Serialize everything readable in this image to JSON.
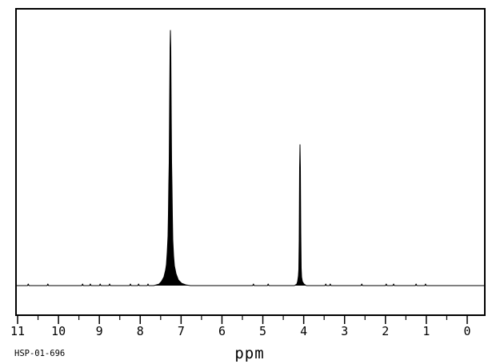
{
  "meta": {
    "spectrum_id": "HSP-01-696"
  },
  "colors": {
    "line": "#000000",
    "background": "#ffffff"
  },
  "chart_data": {
    "type": "line",
    "title": "",
    "xlabel": "ppm",
    "ylabel": "",
    "legend": "none",
    "grid": false,
    "x_axis": {
      "min": 0,
      "max": 11,
      "inverted": true,
      "unit": "ppm",
      "major_ticks": [
        11,
        10,
        9,
        8,
        7,
        6,
        5,
        4,
        3,
        2,
        1,
        0
      ],
      "major_tick_labels": [
        "11",
        "10",
        "9",
        "8",
        "7",
        "6",
        "5",
        "4",
        "3",
        "2",
        "1",
        "0"
      ],
      "minor_tick_positions": [
        10.5,
        9.5,
        8.5,
        7.5,
        6.5,
        5.5,
        4.5,
        3.5,
        2.5,
        1.5,
        0.5
      ]
    },
    "y_axis": {
      "visible": false,
      "relative_intensity_range": [
        0,
        1
      ]
    },
    "peaks": [
      {
        "ppm": 7.26,
        "relative_intensity": 1.0,
        "shape": "multiplet"
      },
      {
        "ppm": 4.09,
        "relative_intensity": 0.55,
        "shape": "singlet"
      }
    ],
    "trace_clusters": [
      {
        "name": "peak-7.26",
        "points": [
          [
            7.67,
            0.0
          ],
          [
            7.54,
            0.006
          ],
          [
            7.48,
            0.016
          ],
          [
            7.42,
            0.034
          ],
          [
            7.38,
            0.06
          ],
          [
            7.36,
            0.082
          ],
          [
            7.34,
            0.129
          ],
          [
            7.32,
            0.194
          ],
          [
            7.31,
            0.279
          ],
          [
            7.3,
            0.398
          ],
          [
            7.29,
            0.483
          ],
          [
            7.28,
            0.743
          ],
          [
            7.27,
            0.931
          ],
          [
            7.261,
            1.0
          ],
          [
            7.251,
            0.931
          ],
          [
            7.241,
            0.649
          ],
          [
            7.232,
            0.483
          ],
          [
            7.222,
            0.389
          ],
          [
            7.212,
            0.273
          ],
          [
            7.202,
            0.179
          ],
          [
            7.183,
            0.116
          ],
          [
            7.163,
            0.078
          ],
          [
            7.124,
            0.047
          ],
          [
            7.065,
            0.022
          ],
          [
            6.987,
            0.009
          ],
          [
            6.889,
            0.003
          ],
          [
            6.772,
            0.0
          ]
        ]
      },
      {
        "name": "peak-4.09",
        "points": [
          [
            4.227,
            0.0
          ],
          [
            4.169,
            0.006
          ],
          [
            4.149,
            0.016
          ],
          [
            4.13,
            0.038
          ],
          [
            4.12,
            0.063
          ],
          [
            4.11,
            0.179
          ],
          [
            4.1,
            0.461
          ],
          [
            4.091,
            0.552
          ],
          [
            4.081,
            0.461
          ],
          [
            4.071,
            0.21
          ],
          [
            4.061,
            0.069
          ],
          [
            4.052,
            0.034
          ],
          [
            4.032,
            0.016
          ],
          [
            3.993,
            0.006
          ],
          [
            3.934,
            0.0
          ]
        ]
      }
    ],
    "baseline_noise_blips_ppm": [
      10.74,
      10.26,
      9.41,
      9.22,
      8.98,
      8.75,
      8.24,
      8.04,
      7.81,
      5.23,
      4.87,
      3.46,
      3.35,
      2.58,
      1.98,
      1.8,
      1.25,
      1.02
    ]
  }
}
